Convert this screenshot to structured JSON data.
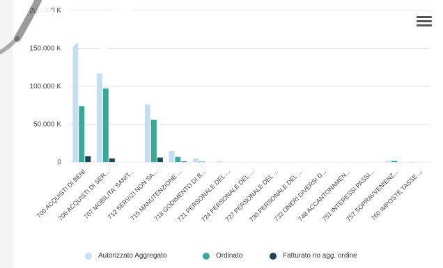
{
  "chart_data": {
    "type": "bar",
    "categories": [
      "700 ACQUISTI DI BENI",
      "706 ACQUISTI DI SER...",
      "707 MOBILITA' SANIT...",
      "712 SERVIZI NON SA...",
      "715 MANUTENZIONE ...",
      "718 GODIMENTO DI B...",
      "721 PERSONALE DEL ...",
      "724 PERSONALE DEL ...",
      "727 PERSONALE DEL ...",
      "730 PERSONALE DEL ...",
      "733 ONERI DIVERSI D...",
      "748 ACCANTONAMEN...",
      "751 INTERESSI PASSI...",
      "757 SOPRAVVENIENZ...",
      "760 IMPOSTE TASSE ..."
    ],
    "series": [
      {
        "name": "Autorizzato Aggregato",
        "color": "#c5dff2",
        "values": [
          157000,
          117000,
          0,
          76000,
          15000,
          5000,
          1500,
          0,
          0,
          0,
          0,
          0,
          0,
          2000,
          500
        ]
      },
      {
        "name": "Ordinato",
        "color": "#3aa897",
        "values": [
          74000,
          97000,
          0,
          56000,
          7000,
          1000,
          0,
          0,
          0,
          0,
          0,
          0,
          0,
          2000,
          0
        ]
      },
      {
        "name": "Fatturato no agg. ordine",
        "color": "#1b4456",
        "values": [
          8000,
          5000,
          0,
          6000,
          1000,
          0,
          0,
          0,
          0,
          0,
          0,
          0,
          0,
          0,
          0
        ]
      }
    ],
    "y_ticks": [
      "0",
      "50.000 K",
      "100.000 K",
      "150.000 K",
      "200.000 K"
    ],
    "ylim": [
      0,
      200000
    ],
    "grid": true,
    "legend_position": "bottom",
    "menu_icon": "hamburger-menu-icon"
  }
}
